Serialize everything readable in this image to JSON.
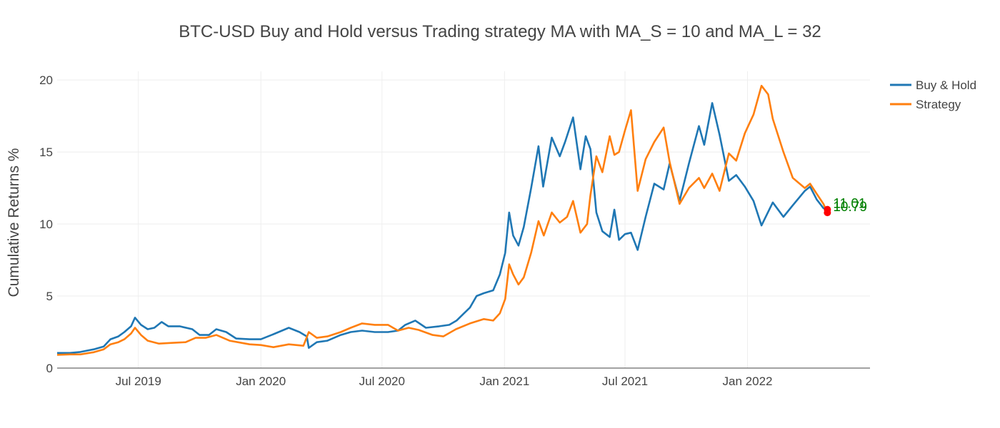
{
  "chart_data": {
    "type": "line",
    "title": "BTC-USD Buy and Hold versus Trading strategy MA with MA_S = 10 and MA_L = 32",
    "xlabel": "",
    "ylabel": "Cumulative Returns %",
    "x_ticks": [
      "Jul 2019",
      "Jan 2020",
      "Jul 2020",
      "Jan 2021",
      "Jul 2021",
      "Jan 2022"
    ],
    "x_tick_dates": [
      "2019-07-01",
      "2020-01-01",
      "2020-07-01",
      "2021-01-01",
      "2021-07-01",
      "2022-01-01"
    ],
    "xlim": [
      "2019-03-01",
      "2022-07-04"
    ],
    "y_ticks": [
      "0",
      "5",
      "10",
      "15",
      "20"
    ],
    "y_tick_values": [
      0,
      5,
      10,
      15,
      20
    ],
    "ylim": [
      0,
      20.6
    ],
    "grid": true,
    "legend_position": "top-right",
    "series": [
      {
        "name": "Buy & Hold",
        "color": "#1f77b4",
        "points": [
          [
            "2019-03-01",
            1.05
          ],
          [
            "2019-03-20",
            1.05
          ],
          [
            "2019-04-05",
            1.12
          ],
          [
            "2019-04-25",
            1.3
          ],
          [
            "2019-05-10",
            1.5
          ],
          [
            "2019-05-20",
            2.0
          ],
          [
            "2019-06-01",
            2.2
          ],
          [
            "2019-06-10",
            2.5
          ],
          [
            "2019-06-20",
            2.9
          ],
          [
            "2019-06-26",
            3.5
          ],
          [
            "2019-07-05",
            3.0
          ],
          [
            "2019-07-15",
            2.7
          ],
          [
            "2019-07-25",
            2.8
          ],
          [
            "2019-08-05",
            3.2
          ],
          [
            "2019-08-15",
            2.9
          ],
          [
            "2019-09-01",
            2.9
          ],
          [
            "2019-09-20",
            2.7
          ],
          [
            "2019-10-01",
            2.3
          ],
          [
            "2019-10-15",
            2.3
          ],
          [
            "2019-10-26",
            2.7
          ],
          [
            "2019-11-10",
            2.5
          ],
          [
            "2019-11-25",
            2.05
          ],
          [
            "2019-12-15",
            2.0
          ],
          [
            "2020-01-01",
            2.0
          ],
          [
            "2020-01-20",
            2.35
          ],
          [
            "2020-02-12",
            2.8
          ],
          [
            "2020-02-28",
            2.5
          ],
          [
            "2020-03-10",
            2.2
          ],
          [
            "2020-03-13",
            1.4
          ],
          [
            "2020-03-25",
            1.8
          ],
          [
            "2020-04-10",
            1.9
          ],
          [
            "2020-04-30",
            2.3
          ],
          [
            "2020-05-15",
            2.5
          ],
          [
            "2020-06-01",
            2.6
          ],
          [
            "2020-06-20",
            2.5
          ],
          [
            "2020-07-10",
            2.5
          ],
          [
            "2020-07-25",
            2.6
          ],
          [
            "2020-08-05",
            3.0
          ],
          [
            "2020-08-20",
            3.3
          ],
          [
            "2020-09-05",
            2.8
          ],
          [
            "2020-09-25",
            2.9
          ],
          [
            "2020-10-10",
            3.0
          ],
          [
            "2020-10-21",
            3.3
          ],
          [
            "2020-11-01",
            3.8
          ],
          [
            "2020-11-10",
            4.2
          ],
          [
            "2020-11-20",
            5.0
          ],
          [
            "2020-12-01",
            5.2
          ],
          [
            "2020-12-15",
            5.4
          ],
          [
            "2020-12-25",
            6.5
          ],
          [
            "2021-01-02",
            8.0
          ],
          [
            "2021-01-08",
            10.8
          ],
          [
            "2021-01-14",
            9.2
          ],
          [
            "2021-01-22",
            8.5
          ],
          [
            "2021-01-30",
            9.8
          ],
          [
            "2021-02-10",
            12.5
          ],
          [
            "2021-02-21",
            15.4
          ],
          [
            "2021-02-28",
            12.6
          ],
          [
            "2021-03-13",
            16.0
          ],
          [
            "2021-03-25",
            14.7
          ],
          [
            "2021-04-02",
            15.7
          ],
          [
            "2021-04-14",
            17.4
          ],
          [
            "2021-04-25",
            13.8
          ],
          [
            "2021-05-03",
            16.1
          ],
          [
            "2021-05-10",
            15.2
          ],
          [
            "2021-05-19",
            10.8
          ],
          [
            "2021-05-28",
            9.5
          ],
          [
            "2021-06-08",
            9.1
          ],
          [
            "2021-06-15",
            11.0
          ],
          [
            "2021-06-22",
            8.9
          ],
          [
            "2021-07-01",
            9.3
          ],
          [
            "2021-07-10",
            9.4
          ],
          [
            "2021-07-20",
            8.2
          ],
          [
            "2021-08-01",
            10.5
          ],
          [
            "2021-08-14",
            12.8
          ],
          [
            "2021-08-28",
            12.4
          ],
          [
            "2021-09-06",
            14.2
          ],
          [
            "2021-09-21",
            11.6
          ],
          [
            "2021-10-05",
            14.2
          ],
          [
            "2021-10-20",
            16.8
          ],
          [
            "2021-10-28",
            15.5
          ],
          [
            "2021-11-09",
            18.4
          ],
          [
            "2021-11-20",
            16.2
          ],
          [
            "2021-12-04",
            13.0
          ],
          [
            "2021-12-15",
            13.4
          ],
          [
            "2021-12-28",
            12.6
          ],
          [
            "2022-01-10",
            11.6
          ],
          [
            "2022-01-22",
            9.9
          ],
          [
            "2022-02-08",
            11.5
          ],
          [
            "2022-02-24",
            10.5
          ],
          [
            "2022-03-10",
            11.3
          ],
          [
            "2022-03-28",
            12.3
          ],
          [
            "2022-04-05",
            12.6
          ],
          [
            "2022-04-15",
            11.7
          ],
          [
            "2022-04-25",
            11.1
          ],
          [
            "2022-05-01",
            11.01
          ]
        ]
      },
      {
        "name": "Strategy",
        "color": "#ff7f0e",
        "points": [
          [
            "2019-03-01",
            0.92
          ],
          [
            "2019-03-20",
            0.95
          ],
          [
            "2019-04-05",
            0.95
          ],
          [
            "2019-04-25",
            1.1
          ],
          [
            "2019-05-10",
            1.3
          ],
          [
            "2019-05-20",
            1.65
          ],
          [
            "2019-06-01",
            1.8
          ],
          [
            "2019-06-10",
            2.0
          ],
          [
            "2019-06-20",
            2.4
          ],
          [
            "2019-06-26",
            2.8
          ],
          [
            "2019-07-05",
            2.3
          ],
          [
            "2019-07-15",
            1.9
          ],
          [
            "2019-08-01",
            1.7
          ],
          [
            "2019-08-20",
            1.75
          ],
          [
            "2019-09-10",
            1.8
          ],
          [
            "2019-09-25",
            2.1
          ],
          [
            "2019-10-10",
            2.1
          ],
          [
            "2019-10-26",
            2.3
          ],
          [
            "2019-11-15",
            1.9
          ],
          [
            "2019-12-15",
            1.65
          ],
          [
            "2020-01-01",
            1.6
          ],
          [
            "2020-01-20",
            1.45
          ],
          [
            "2020-02-12",
            1.65
          ],
          [
            "2020-03-05",
            1.55
          ],
          [
            "2020-03-13",
            2.5
          ],
          [
            "2020-03-25",
            2.1
          ],
          [
            "2020-04-10",
            2.2
          ],
          [
            "2020-04-30",
            2.5
          ],
          [
            "2020-05-15",
            2.8
          ],
          [
            "2020-06-01",
            3.1
          ],
          [
            "2020-06-20",
            3.0
          ],
          [
            "2020-07-10",
            3.0
          ],
          [
            "2020-07-25",
            2.6
          ],
          [
            "2020-08-10",
            2.8
          ],
          [
            "2020-08-25",
            2.65
          ],
          [
            "2020-09-15",
            2.3
          ],
          [
            "2020-10-01",
            2.2
          ],
          [
            "2020-10-20",
            2.7
          ],
          [
            "2020-11-10",
            3.1
          ],
          [
            "2020-12-01",
            3.4
          ],
          [
            "2020-12-15",
            3.3
          ],
          [
            "2020-12-25",
            3.8
          ],
          [
            "2021-01-02",
            4.8
          ],
          [
            "2021-01-08",
            7.2
          ],
          [
            "2021-01-14",
            6.5
          ],
          [
            "2021-01-22",
            5.8
          ],
          [
            "2021-01-30",
            6.3
          ],
          [
            "2021-02-10",
            8.0
          ],
          [
            "2021-02-21",
            10.2
          ],
          [
            "2021-03-01",
            9.2
          ],
          [
            "2021-03-13",
            10.8
          ],
          [
            "2021-03-25",
            10.1
          ],
          [
            "2021-04-05",
            10.5
          ],
          [
            "2021-04-14",
            11.6
          ],
          [
            "2021-04-25",
            9.4
          ],
          [
            "2021-05-05",
            10.0
          ],
          [
            "2021-05-10",
            12.0
          ],
          [
            "2021-05-19",
            14.7
          ],
          [
            "2021-05-28",
            13.6
          ],
          [
            "2021-06-08",
            16.1
          ],
          [
            "2021-06-15",
            14.8
          ],
          [
            "2021-06-22",
            15.0
          ],
          [
            "2021-07-01",
            16.5
          ],
          [
            "2021-07-10",
            17.9
          ],
          [
            "2021-07-20",
            12.3
          ],
          [
            "2021-08-01",
            14.5
          ],
          [
            "2021-08-14",
            15.7
          ],
          [
            "2021-08-28",
            16.7
          ],
          [
            "2021-09-06",
            14.3
          ],
          [
            "2021-09-21",
            11.4
          ],
          [
            "2021-10-05",
            12.5
          ],
          [
            "2021-10-20",
            13.2
          ],
          [
            "2021-10-28",
            12.5
          ],
          [
            "2021-11-09",
            13.5
          ],
          [
            "2021-11-20",
            12.3
          ],
          [
            "2021-12-04",
            14.9
          ],
          [
            "2021-12-15",
            14.4
          ],
          [
            "2021-12-28",
            16.3
          ],
          [
            "2022-01-10",
            17.6
          ],
          [
            "2022-01-22",
            19.6
          ],
          [
            "2022-02-01",
            19.0
          ],
          [
            "2022-02-08",
            17.3
          ],
          [
            "2022-02-24",
            15.0
          ],
          [
            "2022-03-10",
            13.2
          ],
          [
            "2022-03-28",
            12.5
          ],
          [
            "2022-04-05",
            12.8
          ],
          [
            "2022-04-15",
            12.1
          ],
          [
            "2022-04-25",
            11.4
          ],
          [
            "2022-05-01",
            10.79
          ]
        ]
      }
    ],
    "annotations": [
      {
        "text": "11.01",
        "x": "2022-05-01",
        "y": 11.01,
        "color": "#008000"
      },
      {
        "text": "10.79",
        "x": "2022-05-01",
        "y": 10.79,
        "color": "#008000"
      }
    ],
    "end_markers_color": "#ff0000"
  }
}
